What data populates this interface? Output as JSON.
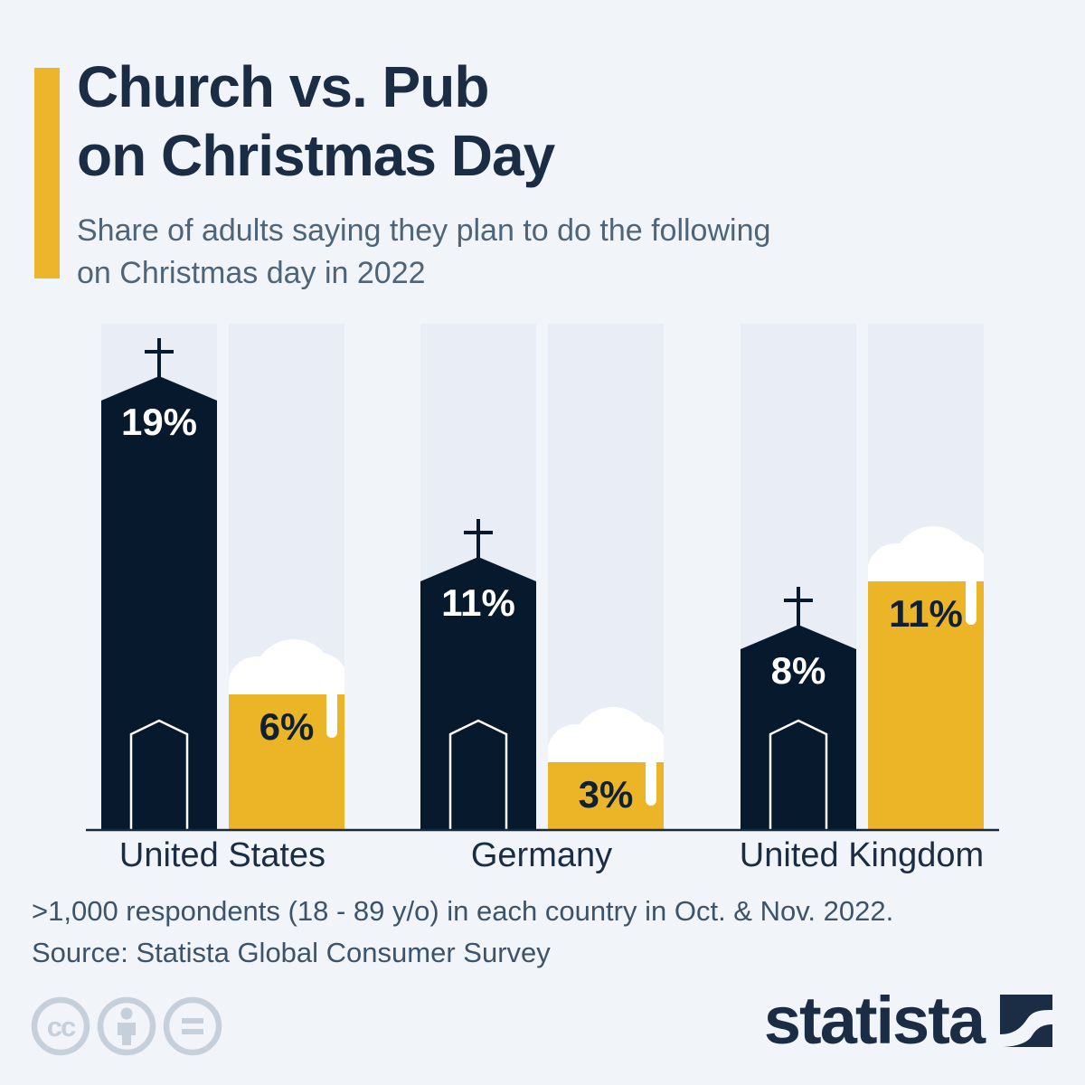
{
  "page": {
    "background": "#F1F4F8",
    "accent_color": "#EDB52B"
  },
  "header": {
    "title": "Church vs. Pub\non Christmas Day",
    "subtitle": "Share of adults saying they plan to do the following\non Christmas day in 2022"
  },
  "chart_data": {
    "type": "bar",
    "title": "Church vs. Pub on Christmas Day",
    "subtitle": "Share of adults saying they plan to do the following on Christmas day in 2022",
    "categories": [
      "United States",
      "Germany",
      "United Kingdom"
    ],
    "series": [
      {
        "name": "church",
        "icon": "church-icon",
        "color": "#071A2D",
        "values": [
          19,
          11,
          8
        ],
        "labels": [
          "19%",
          "11%",
          "8%"
        ],
        "label_color": "#FFFFFF"
      },
      {
        "name": "pub",
        "icon": "beer-mug-icon",
        "color": "#ECB527",
        "values": [
          6,
          3,
          11
        ],
        "labels": [
          "6%",
          "3%",
          "11%"
        ],
        "label_color": "#0E2134"
      }
    ],
    "unit": "%",
    "ylim": [
      0,
      22
    ],
    "grid": false,
    "legend": "none",
    "column_bg": "#E9EDF5",
    "axis_color": "#17293D",
    "category_color": "#1B2D44"
  },
  "footer": {
    "note": ">1,000 respondents (18 - 89 y/o) in each country in Oct. & Nov. 2022.",
    "source": "Source: Statista Global Consumer Survey",
    "license_icons": [
      "cc-icon",
      "attribution-icon",
      "no-derivatives-icon"
    ],
    "logo_text": "statista"
  }
}
